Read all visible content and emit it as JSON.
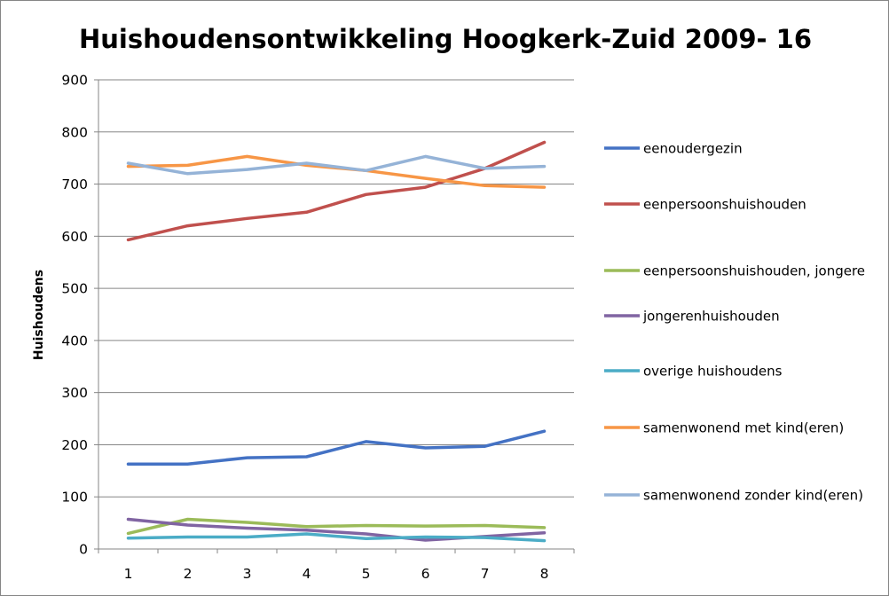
{
  "chart_data": {
    "type": "line",
    "title": "Huishoudensontwikkeling Hoogkerk-Zuid 2009- 16",
    "xlabel": "",
    "ylabel": "Huishoudens",
    "x": [
      1,
      2,
      3,
      4,
      5,
      6,
      7,
      8
    ],
    "ylim": [
      0,
      900
    ],
    "yticks": [
      0,
      100,
      200,
      300,
      400,
      500,
      600,
      700,
      800,
      900
    ],
    "grid": "horizontal",
    "legend_position": "right",
    "series": [
      {
        "name": "eenoudergezin",
        "color": "#4472C4",
        "values": [
          163,
          163,
          175,
          177,
          206,
          194,
          197,
          226
        ]
      },
      {
        "name": "eenpersoonshuishouden",
        "color": "#C0504D",
        "values": [
          593,
          620,
          634,
          646,
          680,
          694,
          730,
          780
        ]
      },
      {
        "name": "eenpersoonshuishouden, jongere",
        "color": "#9BBB59",
        "values": [
          30,
          57,
          51,
          43,
          45,
          44,
          45,
          41
        ]
      },
      {
        "name": "jongerenhuishouden",
        "color": "#8064A2",
        "values": [
          57,
          46,
          40,
          36,
          29,
          17,
          24,
          31
        ]
      },
      {
        "name": "overige huishoudens",
        "color": "#4BACC6",
        "values": [
          21,
          23,
          23,
          29,
          20,
          23,
          22,
          16
        ]
      },
      {
        "name": "samenwonend met kind(eren)",
        "color": "#F79646",
        "values": [
          734,
          736,
          753,
          736,
          726,
          711,
          697,
          694
        ]
      },
      {
        "name": "samenwonend zonder kind(eren)",
        "color": "#95B3D7",
        "values": [
          740,
          720,
          728,
          740,
          726,
          753,
          730,
          734
        ]
      }
    ]
  }
}
